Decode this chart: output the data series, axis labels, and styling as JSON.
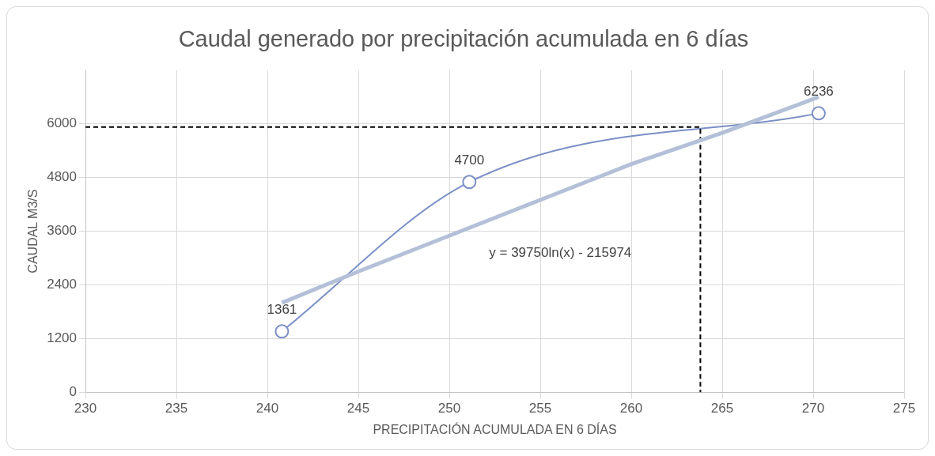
{
  "chart_data": {
    "type": "line",
    "title": "Caudal generado por precipitación acumulada en 6 días",
    "xlabel": "PRECIPITACIÓN ACUMULADA EN 6 DÍAS",
    "ylabel": "CAUDAL M3/S",
    "xlim": [
      230,
      275
    ],
    "xticks": [
      230,
      235,
      240,
      245,
      250,
      255,
      260,
      265,
      270,
      275
    ],
    "ylim": [
      0,
      7200
    ],
    "yticks": [
      0,
      1200,
      2400,
      3600,
      4800,
      6000
    ],
    "grid": true,
    "legend": false,
    "series": [
      {
        "type": "line",
        "color": "#b4c0d8",
        "x": [
          240.8,
          245,
          250,
          255,
          260,
          265,
          270.3
        ],
        "values": [
          2000,
          2700,
          3500,
          4300,
          5100,
          5800,
          6600
        ],
        "marker": "none",
        "line_style": "solid"
      },
      {
        "type": "line",
        "color": "#000000",
        "x": [
          230,
          263.8,
          263.8
        ],
        "values": [
          5930,
          5930,
          0
        ],
        "marker": "none",
        "line_style": "dashed"
      },
      {
        "color": "#7b8fc7",
        "x": [
          240.8,
          251.1,
          270.3
        ],
        "values": [
          1361,
          4700,
          6236
        ],
        "marker": "circle",
        "line_style": "solid",
        "value_labels": [
          "1361",
          "4700",
          "6236"
        ]
      }
    ],
    "annotations": [
      "y = 39750ln(x) - 215974"
    ]
  }
}
